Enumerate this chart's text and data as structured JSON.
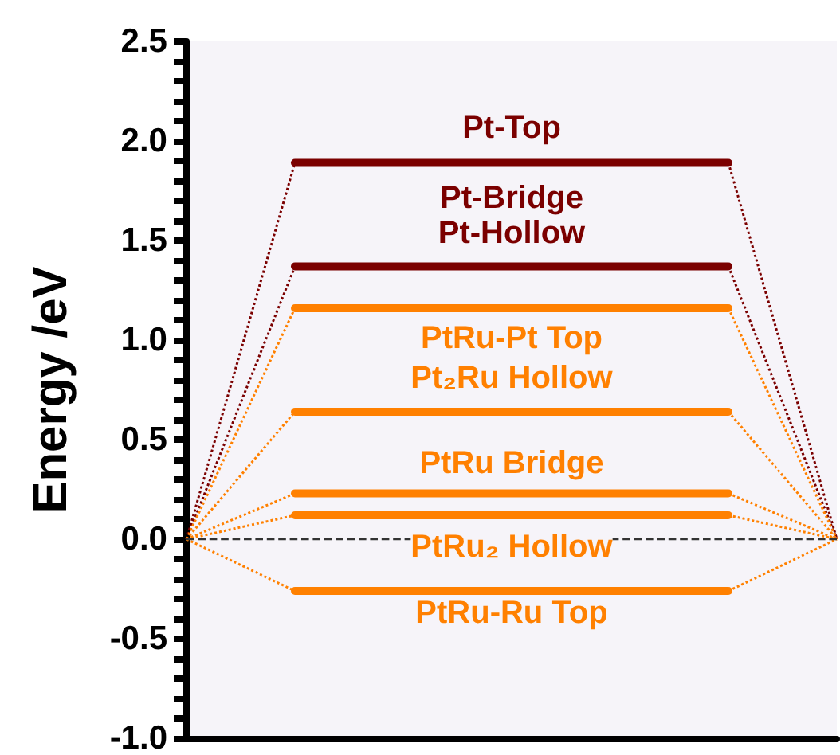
{
  "chart_data": {
    "type": "line",
    "ylabel": "Energy /eV",
    "ylim": [
      -1.0,
      2.5
    ],
    "yticks": [
      {
        "value": -1.0,
        "label": "-1.0"
      },
      {
        "value": -0.5,
        "label": "-0.5"
      },
      {
        "value": 0.0,
        "label": "0.0"
      },
      {
        "value": 0.5,
        "label": "0.5"
      },
      {
        "value": 1.0,
        "label": "1.0"
      },
      {
        "value": 1.5,
        "label": "1.5"
      },
      {
        "value": 2.0,
        "label": "2.0"
      },
      {
        "value": 2.5,
        "label": "2.5"
      }
    ],
    "categories": [
      null,
      null,
      null,
      null,
      null,
      null,
      null
    ],
    "tick_labels": "y",
    "grid": false,
    "legend": false,
    "marker": "none",
    "ref_lines": [
      {
        "axis": "y",
        "value": 0,
        "color": "#333333",
        "line_style": "dashed"
      }
    ],
    "series": [
      {
        "name": "Pt-Top",
        "color": "#7b0000",
        "line_style": "solid",
        "values": [
          null,
          1.89,
          1.89,
          1.89,
          1.89,
          1.89,
          null
        ]
      },
      {
        "name": "Pt-Bridge\nPt-Hollow",
        "color": "#7b0000",
        "line_style": "solid",
        "values": [
          null,
          1.37,
          1.37,
          1.37,
          1.37,
          1.37,
          null
        ]
      },
      {
        "name": "PtRu-Pt Top",
        "color": "#ff8000",
        "line_style": "solid",
        "values": [
          null,
          1.16,
          1.16,
          1.16,
          1.16,
          1.16,
          null
        ]
      },
      {
        "name": "Pt₂Ru Hollow",
        "color": "#ff8000",
        "line_style": "solid",
        "values": [
          null,
          0.64,
          0.64,
          0.64,
          0.64,
          0.64,
          null
        ]
      },
      {
        "name": "PtRu Bridge",
        "color": "#ff8000",
        "line_style": "solid",
        "values": [
          null,
          0.23,
          0.23,
          0.23,
          0.23,
          0.23,
          null
        ]
      },
      {
        "name": "PtRu₂ Hollow",
        "color": "#ff8000",
        "line_style": "solid",
        "values": [
          null,
          0.12,
          0.12,
          0.12,
          0.12,
          0.12,
          null
        ]
      },
      {
        "name": "PtRu-Ru Top",
        "color": "#ff8000",
        "line_style": "solid",
        "values": [
          null,
          -0.26,
          -0.26,
          -0.26,
          -0.26,
          -0.26,
          null
        ]
      },
      {
        "color": "#7b0000",
        "line_style": "dotted",
        "values": [
          0,
          1.89,
          null,
          null,
          null,
          null,
          null
        ]
      },
      {
        "color": "#7b0000",
        "line_style": "dotted",
        "values": [
          0,
          1.37,
          null,
          null,
          null,
          null,
          null
        ]
      },
      {
        "color": "#ff8000",
        "line_style": "dotted",
        "values": [
          0,
          1.16,
          null,
          null,
          null,
          null,
          null
        ]
      },
      {
        "color": "#ff8000",
        "line_style": "dotted",
        "values": [
          0,
          0.64,
          null,
          null,
          null,
          null,
          null
        ]
      },
      {
        "color": "#ff8000",
        "line_style": "dotted",
        "values": [
          0,
          0.23,
          null,
          null,
          null,
          null,
          null
        ]
      },
      {
        "color": "#ff8000",
        "line_style": "dotted",
        "values": [
          0,
          0.12,
          null,
          null,
          null,
          null,
          null
        ]
      },
      {
        "color": "#ff8000",
        "line_style": "dotted",
        "values": [
          0,
          -0.26,
          null,
          null,
          null,
          null,
          null
        ]
      },
      {
        "color": "#7b0000",
        "line_style": "dotted",
        "values": [
          null,
          null,
          null,
          null,
          null,
          1.89,
          0
        ]
      },
      {
        "color": "#7b0000",
        "line_style": "dotted",
        "values": [
          null,
          null,
          null,
          null,
          null,
          1.37,
          0
        ]
      },
      {
        "color": "#ff8000",
        "line_style": "dotted",
        "values": [
          null,
          null,
          null,
          null,
          null,
          1.16,
          0
        ]
      },
      {
        "color": "#ff8000",
        "line_style": "dotted",
        "values": [
          null,
          null,
          null,
          null,
          null,
          0.64,
          0
        ]
      },
      {
        "color": "#ff8000",
        "line_style": "dotted",
        "values": [
          null,
          null,
          null,
          null,
          null,
          0.23,
          0
        ]
      },
      {
        "color": "#ff8000",
        "line_style": "dotted",
        "values": [
          null,
          null,
          null,
          null,
          null,
          0.12,
          0
        ]
      },
      {
        "color": "#ff8000",
        "line_style": "dotted",
        "values": [
          null,
          null,
          null,
          null,
          null,
          -0.26,
          0
        ]
      }
    ]
  }
}
